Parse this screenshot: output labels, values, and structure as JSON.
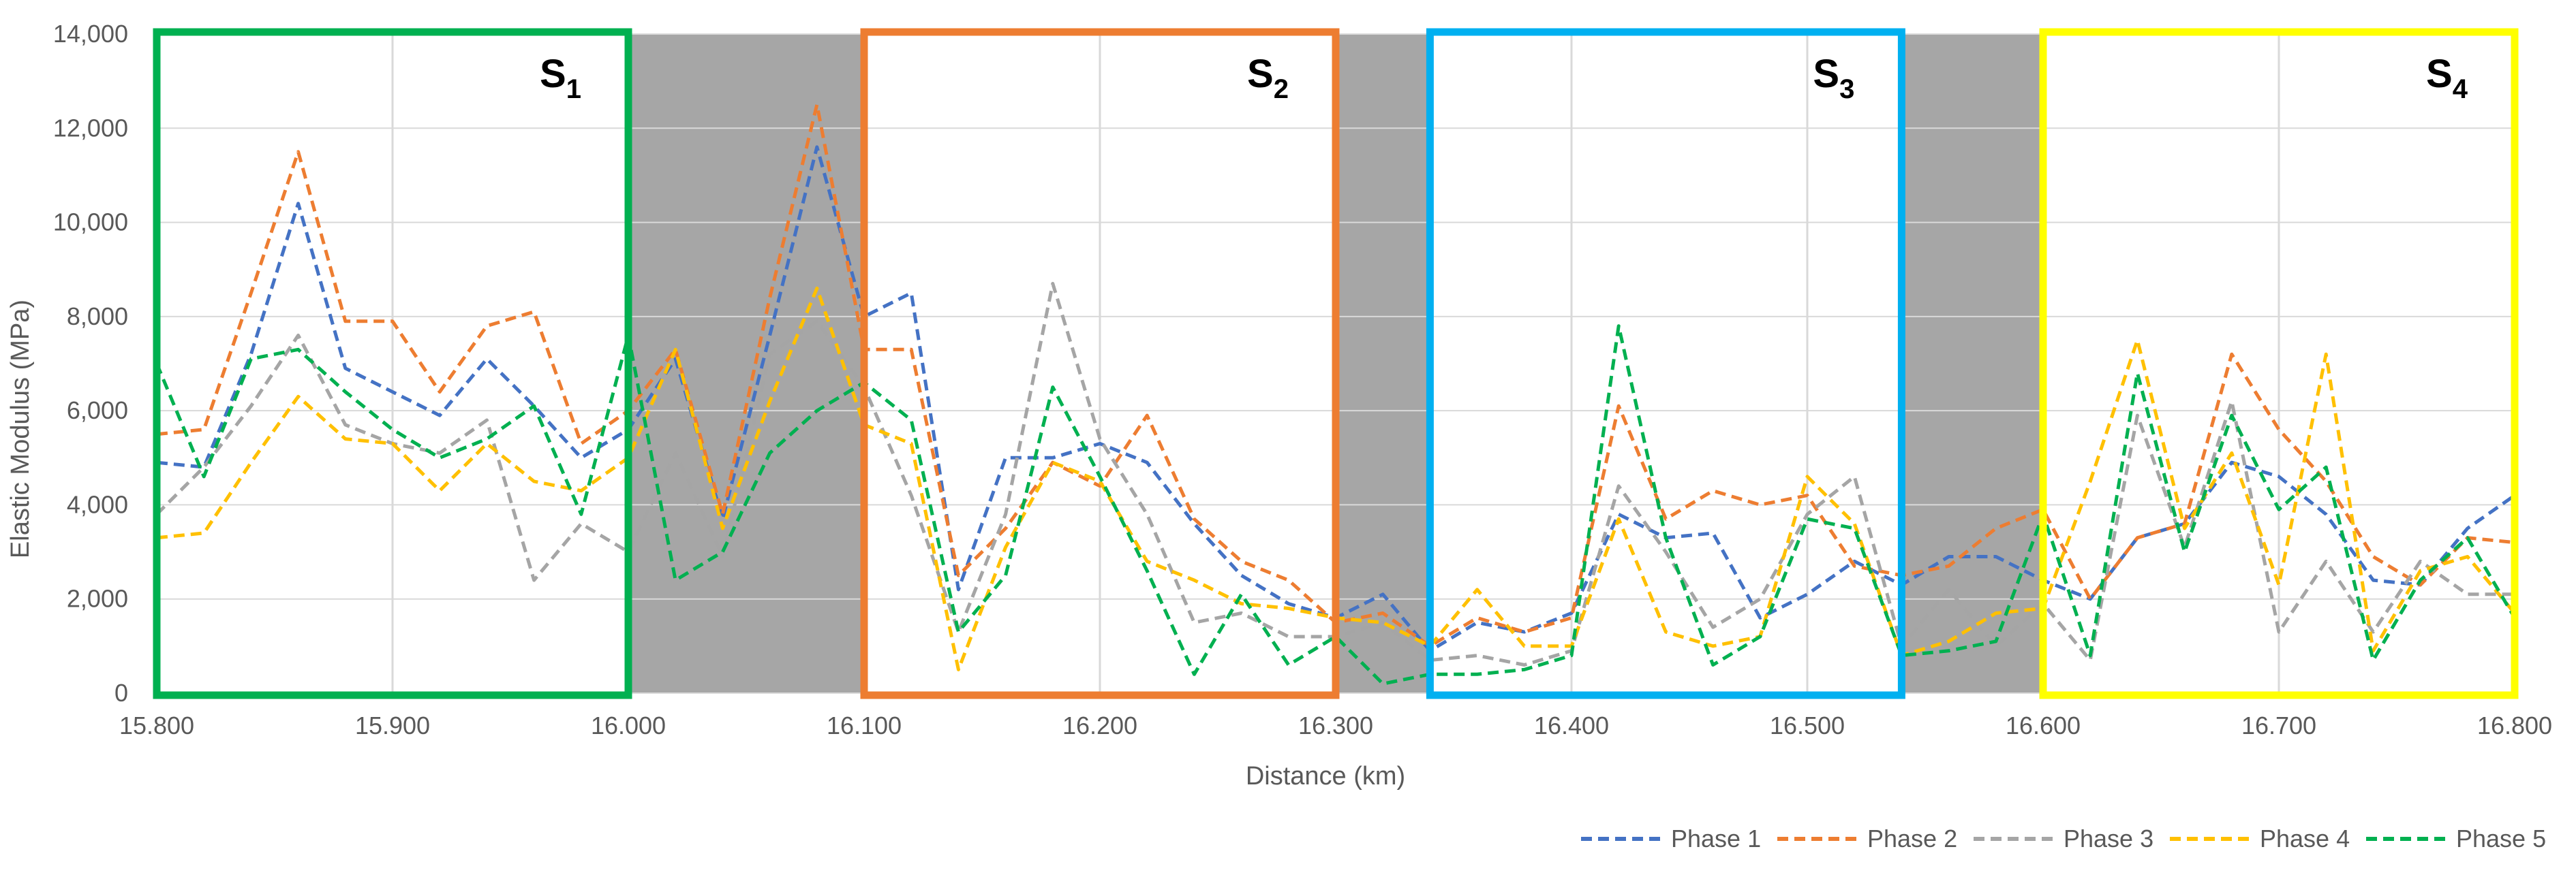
{
  "chart_data": {
    "type": "line",
    "xlabel": "Distance (km)",
    "ylabel": "Elastic Modulus (MPa)",
    "xlim": [
      15.8,
      16.8
    ],
    "ylim": [
      0,
      14000
    ],
    "x_ticks": [
      "15.800",
      "15.900",
      "16.000",
      "16.100",
      "16.200",
      "16.300",
      "16.400",
      "16.500",
      "16.600",
      "16.700",
      "16.800"
    ],
    "y_ticks": [
      "0",
      "2,000",
      "4,000",
      "6,000",
      "8,000",
      "10,000",
      "12,000",
      "14,000"
    ],
    "grid": true,
    "legend_position": "bottom-right",
    "line_style": "dashed",
    "x": [
      15.8,
      15.82,
      15.84,
      15.86,
      15.88,
      15.9,
      15.92,
      15.94,
      15.96,
      15.98,
      16.0,
      16.02,
      16.04,
      16.06,
      16.08,
      16.1,
      16.12,
      16.14,
      16.16,
      16.18,
      16.2,
      16.22,
      16.24,
      16.26,
      16.28,
      16.3,
      16.32,
      16.34,
      16.36,
      16.38,
      16.4,
      16.42,
      16.44,
      16.46,
      16.48,
      16.5,
      16.52,
      16.54,
      16.56,
      16.58,
      16.6,
      16.62,
      16.64,
      16.66,
      16.68,
      16.7,
      16.72,
      16.74,
      16.76,
      16.78,
      16.8
    ],
    "series": [
      {
        "name": "Phase 1",
        "color": "#4472C4",
        "values": [
          4900,
          4800,
          7200,
          10400,
          6900,
          6400,
          5900,
          7100,
          6100,
          5000,
          5600,
          7100,
          3700,
          7600,
          11600,
          8000,
          8500,
          2200,
          5000,
          5000,
          5300,
          4900,
          3600,
          2500,
          1900,
          1600,
          2100,
          900,
          1500,
          1300,
          1700,
          3800,
          3300,
          3400,
          1600,
          2100,
          2800,
          2300,
          2900,
          2900,
          2400,
          2000,
          3300,
          3600,
          4900,
          4600,
          3800,
          2400,
          2300,
          3500,
          4200
        ]
      },
      {
        "name": "Phase 2",
        "color": "#ED7D31",
        "values": [
          5500,
          5600,
          8500,
          11500,
          7900,
          7900,
          6400,
          7800,
          8100,
          5300,
          6000,
          7300,
          3800,
          8400,
          12500,
          7300,
          7300,
          2500,
          3500,
          4900,
          4400,
          5900,
          3700,
          2800,
          2400,
          1500,
          1700,
          1000,
          1600,
          1300,
          1600,
          6100,
          3700,
          4300,
          4000,
          4200,
          2700,
          2500,
          2700,
          3500,
          3900,
          2000,
          3300,
          3600,
          7200,
          5600,
          4500,
          2900,
          2300,
          3300,
          3200
        ]
      },
      {
        "name": "Phase 3",
        "color": "#A5A5A5",
        "values": [
          3800,
          4800,
          6100,
          7600,
          5700,
          5300,
          5100,
          5800,
          2400,
          3600,
          3000,
          5100,
          2900,
          7200,
          7900,
          6500,
          4200,
          1300,
          3800,
          8700,
          5400,
          3800,
          1500,
          1700,
          1200,
          1200,
          1500,
          700,
          800,
          600,
          900,
          4400,
          3000,
          1400,
          2000,
          3800,
          4600,
          1000,
          2200,
          1000,
          1900,
          700,
          5900,
          3100,
          6200,
          1300,
          2800,
          1300,
          2800,
          2100,
          2100
        ]
      },
      {
        "name": "Phase 4",
        "color": "#FFC000",
        "values": [
          3300,
          3400,
          4900,
          6300,
          5400,
          5300,
          4300,
          5300,
          4500,
          4300,
          5000,
          7300,
          3500,
          6200,
          8600,
          5700,
          5300,
          500,
          3100,
          4900,
          4500,
          2800,
          2400,
          1900,
          1800,
          1600,
          1500,
          1000,
          2200,
          1000,
          1000,
          3700,
          1300,
          1000,
          1200,
          4600,
          3600,
          800,
          1100,
          1700,
          1800,
          4500,
          7500,
          3500,
          5100,
          2300,
          7200,
          900,
          2600,
          2900,
          1700
        ]
      },
      {
        "name": "Phase 5",
        "color": "#00B050",
        "values": [
          7000,
          4600,
          7100,
          7300,
          6400,
          5600,
          5000,
          5400,
          6100,
          3800,
          7600,
          2400,
          3000,
          5100,
          6000,
          6600,
          5800,
          1300,
          2500,
          6500,
          4600,
          2600,
          400,
          2100,
          600,
          1200,
          200,
          400,
          400,
          500,
          800,
          7800,
          3300,
          600,
          1200,
          3700,
          3500,
          800,
          900,
          1100,
          3800,
          800,
          6800,
          3000,
          5900,
          3900,
          4800,
          700,
          2400,
          3300,
          1600
        ]
      }
    ],
    "background_bands": [
      [
        16.0,
        16.1
      ],
      [
        16.3,
        16.34
      ],
      [
        16.54,
        16.6
      ]
    ],
    "band_color": "#A6A6A6",
    "segments": [
      {
        "label": "S",
        "subscript": "1",
        "x_start": 15.8,
        "x_end": 16.0,
        "color": "#00B050"
      },
      {
        "label": "S",
        "subscript": "2",
        "x_start": 16.1,
        "x_end": 16.3,
        "color": "#ED7D31"
      },
      {
        "label": "S",
        "subscript": "3",
        "x_start": 16.34,
        "x_end": 16.54,
        "color": "#00B0F0"
      },
      {
        "label": "S",
        "subscript": "4",
        "x_start": 16.6,
        "x_end": 16.8,
        "color": "#FFFF00"
      }
    ]
  }
}
